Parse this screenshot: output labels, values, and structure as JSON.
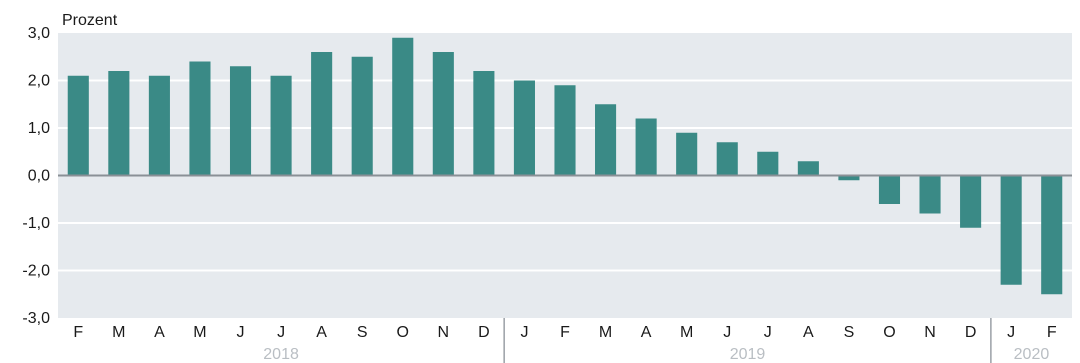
{
  "chart_data": {
    "type": "bar",
    "ylabel": "Prozent",
    "ylim": [
      -3.0,
      3.0
    ],
    "yticks": [
      3.0,
      2.0,
      1.0,
      0.0,
      -1.0,
      -2.0,
      -3.0
    ],
    "ytick_labels": [
      "3,0",
      "2,0",
      "1,0",
      "0,0",
      "-1,0",
      "-2,0",
      "-3,0"
    ],
    "grid": true,
    "categories": [
      "F",
      "M",
      "A",
      "M",
      "J",
      "J",
      "A",
      "S",
      "O",
      "N",
      "D",
      "J",
      "F",
      "M",
      "A",
      "M",
      "J",
      "J",
      "A",
      "S",
      "O",
      "N",
      "D",
      "J",
      "F"
    ],
    "values": [
      2.1,
      2.2,
      2.1,
      2.4,
      2.3,
      2.1,
      2.6,
      2.5,
      2.9,
      2.6,
      2.2,
      2.0,
      1.9,
      1.5,
      1.2,
      0.9,
      0.7,
      0.5,
      0.3,
      -0.1,
      -0.6,
      -0.8,
      -1.1,
      -2.3,
      -2.5
    ],
    "year_groups": [
      {
        "label": "2018",
        "start": 0,
        "end": 10
      },
      {
        "label": "2019",
        "start": 11,
        "end": 22
      },
      {
        "label": "2020",
        "start": 23,
        "end": 24
      }
    ],
    "colors": {
      "bar": "#3a8a86",
      "plot_bg": "#e6eaee",
      "grid": "#ffffff",
      "zero_line": "#8a9096",
      "separator": "#9aa0a6"
    }
  }
}
